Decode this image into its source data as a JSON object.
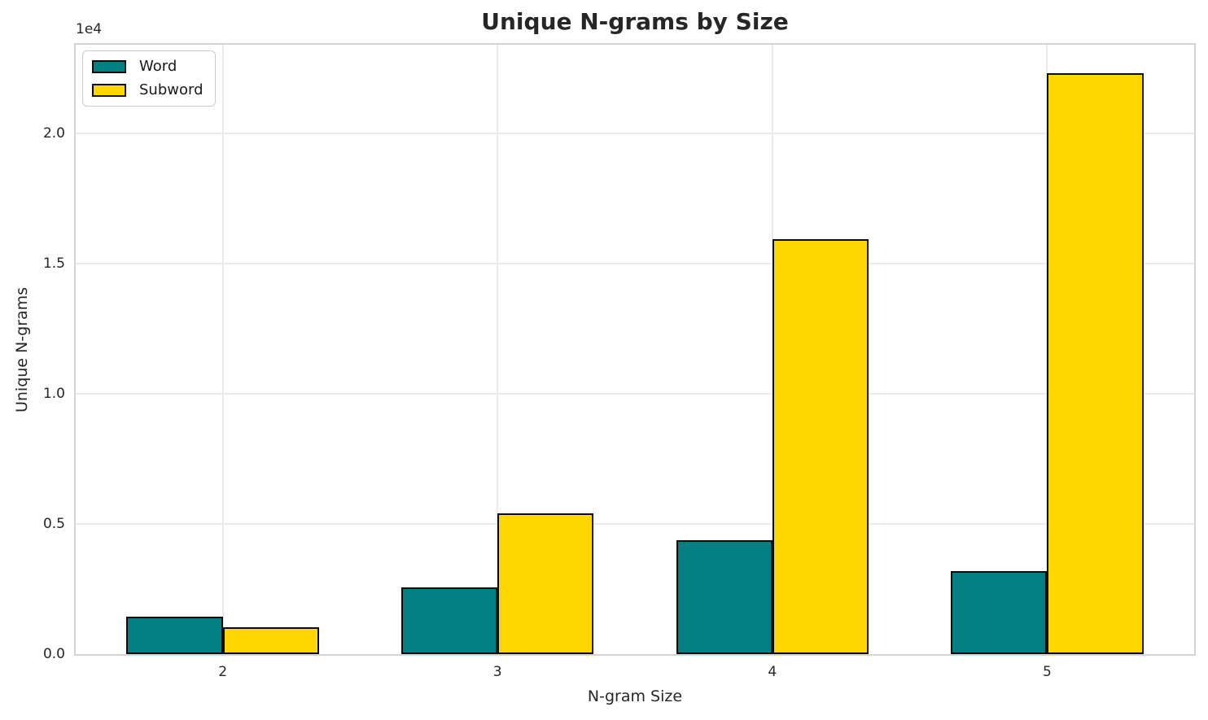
{
  "chart_data": {
    "type": "bar",
    "title": "Unique N-grams by Size",
    "xlabel": "N-gram Size",
    "ylabel": "Unique N-grams",
    "offset_text": "1e4",
    "categories": [
      "2",
      "3",
      "4",
      "5"
    ],
    "series": [
      {
        "name": "Word",
        "color": "#008080",
        "values": [
          1450,
          2550,
          4390,
          3190
        ]
      },
      {
        "name": "Subword",
        "color": "#FFD700",
        "values": [
          1020,
          5420,
          15950,
          22320
        ]
      }
    ],
    "bar_edge_color": "#0d0d0d",
    "bar_width": 0.35,
    "yticks": [
      0,
      5000,
      10000,
      15000,
      20000
    ],
    "ytick_labels": [
      "0.0",
      "0.5",
      "1.0",
      "1.5",
      "2.0"
    ],
    "ylim": [
      0,
      23420
    ],
    "xlim": [
      -0.535,
      3.535
    ],
    "grid": true,
    "legend_position": "upper-left",
    "colors": {
      "grid": "#ebebeb",
      "spine": "#d4d4d4",
      "text": "#262626"
    }
  }
}
